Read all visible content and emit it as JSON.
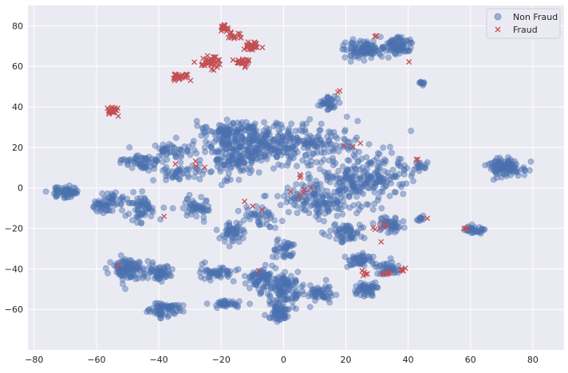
{
  "chart_data": {
    "type": "scatter",
    "title": "",
    "xlabel": "",
    "ylabel": "",
    "xlim": [
      -82,
      90
    ],
    "ylim": [
      -80,
      90
    ],
    "xticks": [
      -80,
      -60,
      -40,
      -20,
      0,
      20,
      40,
      60,
      80
    ],
    "yticks": [
      -60,
      -40,
      -20,
      0,
      20,
      40,
      60,
      80
    ],
    "grid": true,
    "legend_position": "top-right",
    "series": [
      {
        "name": "Non Fraud",
        "marker": "circle",
        "color": "#4c72b0",
        "clusters": [
          {
            "center": [
              -2,
              22
            ],
            "spread": [
              22,
              9
            ],
            "points": 380
          },
          {
            "center": [
              26,
              5
            ],
            "spread": [
              14,
              10
            ],
            "points": 220
          },
          {
            "center": [
              12,
              -6
            ],
            "spread": [
              14,
              8
            ],
            "points": 140
          },
          {
            "center": [
              -16,
              14
            ],
            "spread": [
              9,
              8
            ],
            "points": 110
          },
          {
            "center": [
              -18,
              28
            ],
            "spread": [
              8,
              4
            ],
            "points": 70
          },
          {
            "center": [
              -36,
              18
            ],
            "spread": [
              4,
              5
            ],
            "points": 45
          },
          {
            "center": [
              -33,
              7
            ],
            "spread": [
              6,
              3
            ],
            "points": 40
          },
          {
            "center": [
              -44,
              12
            ],
            "spread": [
              4,
              4
            ],
            "points": 35
          },
          {
            "center": [
              -48,
              13
            ],
            "spread": [
              4,
              3
            ],
            "points": 20
          },
          {
            "center": [
              -70,
              -2
            ],
            "spread": [
              4,
              3
            ],
            "points": 60
          },
          {
            "center": [
              -55,
              -6
            ],
            "spread": [
              4,
              4
            ],
            "points": 40
          },
          {
            "center": [
              -58,
              -9
            ],
            "spread": [
              3,
              3
            ],
            "points": 25
          },
          {
            "center": [
              -45,
              -10
            ],
            "spread": [
              5,
              7
            ],
            "points": 60
          },
          {
            "center": [
              -28,
              -10
            ],
            "spread": [
              5,
              4
            ],
            "points": 50
          },
          {
            "center": [
              -17,
              -22
            ],
            "spread": [
              4,
              5
            ],
            "points": 50
          },
          {
            "center": [
              -7,
              -14
            ],
            "spread": [
              5,
              4
            ],
            "points": 40
          },
          {
            "center": [
              0,
              -30
            ],
            "spread": [
              4,
              4
            ],
            "points": 40
          },
          {
            "center": [
              20,
              -22
            ],
            "spread": [
              5,
              4
            ],
            "points": 60
          },
          {
            "center": [
              35,
              -18
            ],
            "spread": [
              5,
              4
            ],
            "points": 50
          },
          {
            "center": [
              -50,
              -40
            ],
            "spread": [
              5,
              5
            ],
            "points": 100
          },
          {
            "center": [
              -40,
              -42
            ],
            "spread": [
              4,
              4
            ],
            "points": 60
          },
          {
            "center": [
              -38,
              -60
            ],
            "spread": [
              5,
              3
            ],
            "points": 70
          },
          {
            "center": [
              -22,
              -42
            ],
            "spread": [
              5,
              3
            ],
            "points": 50
          },
          {
            "center": [
              -18,
              -57
            ],
            "spread": [
              4,
              2
            ],
            "points": 40
          },
          {
            "center": [
              -8,
              -45
            ],
            "spread": [
              4,
              6
            ],
            "points": 60
          },
          {
            "center": [
              0,
              -50
            ],
            "spread": [
              6,
              8
            ],
            "points": 130
          },
          {
            "center": [
              -2,
              -62
            ],
            "spread": [
              3,
              4
            ],
            "points": 60
          },
          {
            "center": [
              12,
              -52
            ],
            "spread": [
              4,
              4
            ],
            "points": 50
          },
          {
            "center": [
              25,
              -36
            ],
            "spread": [
              4,
              3
            ],
            "points": 50
          },
          {
            "center": [
              27,
              -50
            ],
            "spread": [
              4,
              3
            ],
            "points": 50
          },
          {
            "center": [
              33,
              -40
            ],
            "spread": [
              4,
              3
            ],
            "points": 40
          },
          {
            "center": [
              26,
              68
            ],
            "spread": [
              5,
              4
            ],
            "points": 100
          },
          {
            "center": [
              37,
              70
            ],
            "spread": [
              4,
              4
            ],
            "points": 90
          },
          {
            "center": [
              44,
              52
            ],
            "spread": [
              1,
              1
            ],
            "points": 10
          },
          {
            "center": [
              15,
              42
            ],
            "spread": [
              3,
              3
            ],
            "points": 35
          },
          {
            "center": [
              44,
              10
            ],
            "spread": [
              2,
              4
            ],
            "points": 15
          },
          {
            "center": [
              44,
              -15
            ],
            "spread": [
              1,
              2
            ],
            "points": 10
          },
          {
            "center": [
              71,
              10
            ],
            "spread": [
              5,
              4
            ],
            "points": 110
          },
          {
            "center": [
              61,
              -21
            ],
            "spread": [
              3,
              2
            ],
            "points": 35
          }
        ]
      },
      {
        "name": "Fraud",
        "marker": "x",
        "color": "#c44e52",
        "clusters": [
          {
            "center": [
              -19,
              79
            ],
            "spread": [
              1.5,
              2
            ],
            "points": 20
          },
          {
            "center": [
              -16,
              75
            ],
            "spread": [
              2,
              1.5
            ],
            "points": 15
          },
          {
            "center": [
              -10,
              70
            ],
            "spread": [
              2.5,
              2
            ],
            "points": 30
          },
          {
            "center": [
              -24,
              62
            ],
            "spread": [
              4,
              3
            ],
            "points": 45
          },
          {
            "center": [
              -13,
              62
            ],
            "spread": [
              2.5,
              2
            ],
            "points": 25
          },
          {
            "center": [
              -33,
              55
            ],
            "spread": [
              3,
              1.5
            ],
            "points": 30
          },
          {
            "center": [
              -55,
              38
            ],
            "spread": [
              1.5,
              2
            ],
            "points": 25
          },
          {
            "center": [
              18,
              48
            ],
            "spread": [
              1,
              1
            ],
            "points": 2
          },
          {
            "center": [
              30,
              75
            ],
            "spread": [
              1,
              0.5
            ],
            "points": 3
          },
          {
            "center": [
              40,
              62
            ],
            "spread": [
              0.5,
              0.5
            ],
            "points": 1
          },
          {
            "center": [
              33,
              -42
            ],
            "spread": [
              1.5,
              1.5
            ],
            "points": 6
          },
          {
            "center": [
              38,
              -40
            ],
            "spread": [
              1.5,
              1
            ],
            "points": 5
          },
          {
            "center": [
              25,
              -42
            ],
            "spread": [
              2,
              2
            ],
            "points": 5
          },
          {
            "center": [
              58,
              -20
            ],
            "spread": [
              1,
              1
            ],
            "points": 3
          },
          {
            "center": [
              46,
              -15
            ],
            "spread": [
              0.5,
              0.5
            ],
            "points": 1
          },
          {
            "center": [
              43,
              14
            ],
            "spread": [
              1,
              1
            ],
            "points": 2
          },
          {
            "center": [
              30,
              -20
            ],
            "spread": [
              3,
              4
            ],
            "points": 6
          },
          {
            "center": [
              5,
              3
            ],
            "spread": [
              6,
              6
            ],
            "points": 8
          },
          {
            "center": [
              -10,
              -8
            ],
            "spread": [
              4,
              4
            ],
            "points": 3
          },
          {
            "center": [
              -30,
              10
            ],
            "spread": [
              6,
              5
            ],
            "points": 4
          },
          {
            "center": [
              -38,
              -14
            ],
            "spread": [
              1,
              1
            ],
            "points": 1
          },
          {
            "center": [
              -53,
              -38
            ],
            "spread": [
              1,
              1
            ],
            "points": 1
          },
          {
            "center": [
              20,
              20
            ],
            "spread": [
              3,
              3
            ],
            "points": 3
          },
          {
            "center": [
              -8,
              -41
            ],
            "spread": [
              1,
              1
            ],
            "points": 1
          }
        ]
      }
    ],
    "colors": {
      "background": "#eaeaf2",
      "grid": "#ffffff",
      "text": "#262626"
    }
  }
}
